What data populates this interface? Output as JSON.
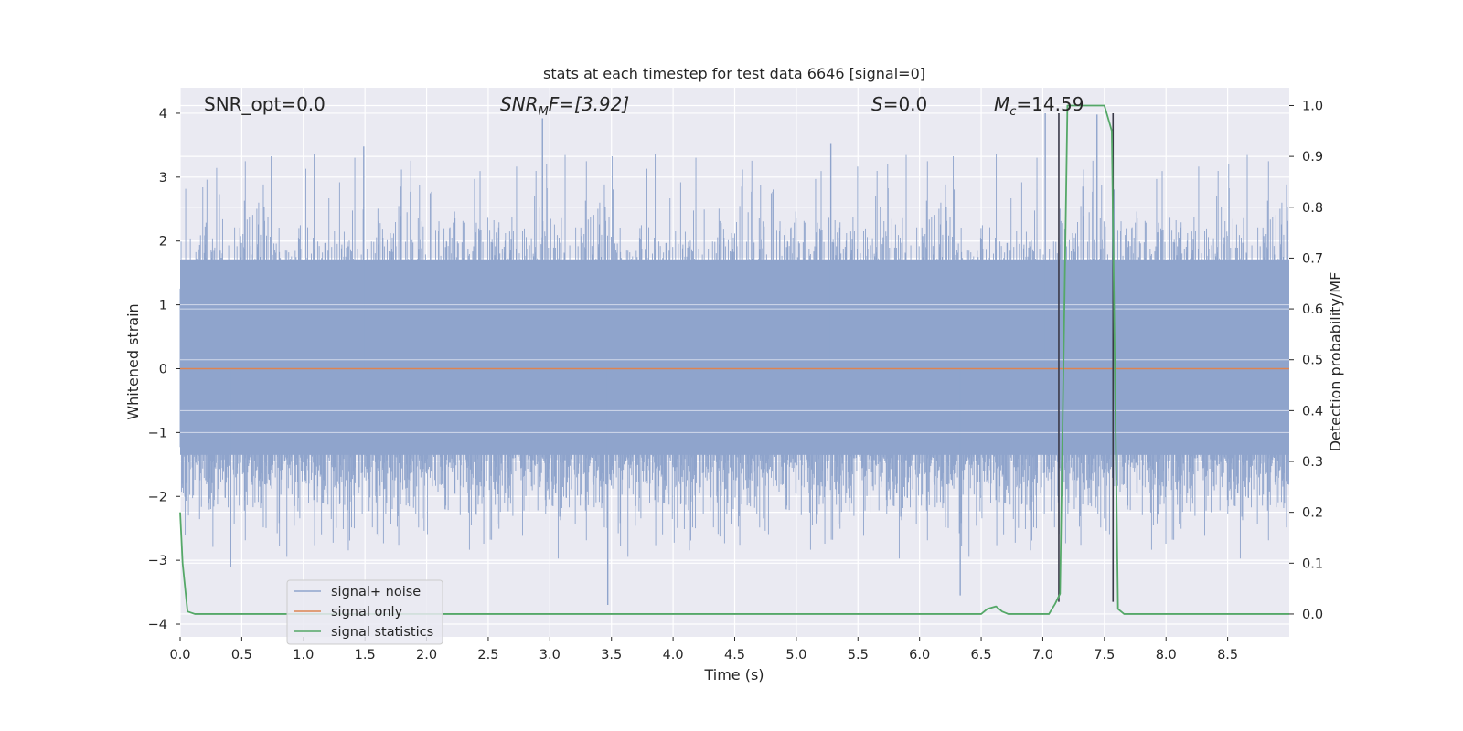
{
  "chart_data": {
    "type": "line",
    "title": "stats at each timestep for test data 6646 [signal=0]",
    "xlabel": "Time (s)",
    "ylabel": "Whitened strain",
    "y2label": "Detection probability/MF",
    "xlim": [
      0.0,
      9.0
    ],
    "ylim": [
      -4.2,
      4.4
    ],
    "y2lim": [
      -0.045,
      1.035
    ],
    "xticks": [
      0.0,
      0.5,
      1.0,
      1.5,
      2.0,
      2.5,
      3.0,
      3.5,
      4.0,
      4.5,
      5.0,
      5.5,
      6.0,
      6.5,
      7.0,
      7.5,
      8.0,
      8.5
    ],
    "xtick_labels": [
      "0.0",
      "0.5",
      "1.0",
      "1.5",
      "2.0",
      "2.5",
      "3.0",
      "3.5",
      "4.0",
      "4.5",
      "5.0",
      "5.5",
      "6.0",
      "6.5",
      "7.0",
      "7.5",
      "8.0",
      "8.5"
    ],
    "yticks": [
      4,
      3,
      2,
      1,
      0,
      -1,
      -2,
      -3,
      -4
    ],
    "ytick_labels": [
      "4",
      "3",
      "2",
      "1",
      "0",
      "−1",
      "−2",
      "−3",
      "−4"
    ],
    "y2ticks": [
      1.0,
      0.9,
      0.8,
      0.7,
      0.6,
      0.5,
      0.4,
      0.3,
      0.2,
      0.1,
      0.0
    ],
    "y2tick_labels": [
      "1.0",
      "0.9",
      "0.8",
      "0.7",
      "0.6",
      "0.5",
      "0.4",
      "0.3",
      "0.2",
      "0.1",
      "0.0"
    ],
    "grid": true,
    "legend_position": "bottom-left",
    "annotations": {
      "snr_opt": "SNR_opt=0.0",
      "snr_mf_main": "SNR",
      "snr_mf_sub": "M",
      "snr_mf_tail": "F=[3.92]",
      "s_italic": "S",
      "s_value": "=0.0",
      "mc_main": "M",
      "mc_sub": "c",
      "mc_value": "=14.59"
    },
    "series": [
      {
        "name": "signal+ noise",
        "color": "#8fa4cc",
        "style": "noise-band",
        "core_range": [
          -1.35,
          1.7
        ],
        "peak_max": 4.0,
        "peak_min": -3.7,
        "peaks": [
          {
            "x": 2.94,
            "y": 3.92
          },
          {
            "x": 1.49,
            "y": 3.48
          },
          {
            "x": 5.28,
            "y": 3.52
          },
          {
            "x": 7.02,
            "y": 4.0
          },
          {
            "x": 7.44,
            "y": 3.98
          },
          {
            "x": 3.47,
            "y": -3.7
          },
          {
            "x": 6.33,
            "y": -3.55
          },
          {
            "x": 0.41,
            "y": -3.1
          }
        ]
      },
      {
        "name": "signal only",
        "color": "#dd8452",
        "x": [
          0.0,
          9.0
        ],
        "y": [
          0.0,
          0.0
        ]
      },
      {
        "name": "signal statistics",
        "color": "#55a868",
        "axis": "right",
        "x": [
          0.0,
          0.02,
          0.06,
          0.12,
          6.5,
          6.55,
          6.62,
          6.67,
          6.72,
          6.8,
          7.05,
          7.1,
          7.14,
          7.2,
          7.5,
          7.56,
          7.61,
          7.66,
          7.72,
          9.0
        ],
        "y": [
          0.2,
          0.1,
          0.005,
          0.0,
          0.0,
          0.01,
          0.015,
          0.005,
          0.0,
          0.0,
          0.0,
          0.02,
          0.04,
          1.0,
          1.0,
          0.95,
          0.01,
          0.0,
          0.0,
          0.0
        ]
      }
    ],
    "vlines": [
      {
        "x": 7.13,
        "color": "#3a3a48",
        "y_from": -3.65,
        "y_to": 4.0
      },
      {
        "x": 7.57,
        "color": "#3a3a48",
        "y_from": -3.65,
        "y_to": 4.0
      }
    ],
    "colors": {
      "plot_bg": "#eaeaf2",
      "grid": "#ffffff",
      "text": "#262626"
    }
  }
}
